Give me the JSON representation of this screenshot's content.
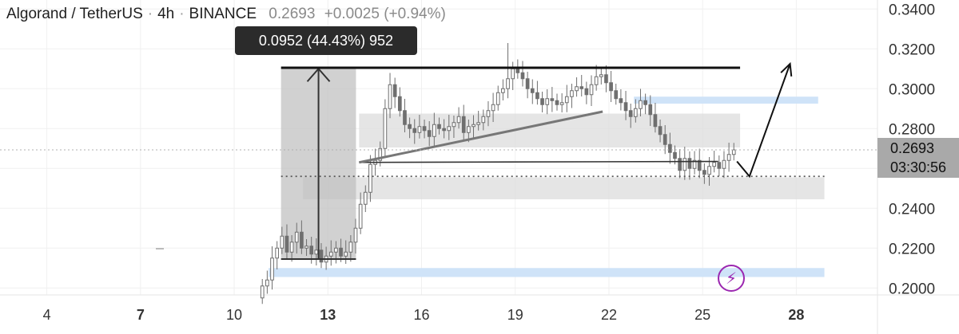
{
  "header": {
    "pair": "Algorand / TetherUS",
    "interval": "4h",
    "exchange": "BINANCE",
    "last": "0.2693",
    "change": "+0.0025 (+0.94%)"
  },
  "tooltip": {
    "text": "0.0952 (44.43%) 952"
  },
  "price_tag": {
    "price": "0.2693",
    "countdown": "03:30:56"
  },
  "icons": {
    "bolt": "lightning-bolt-icon"
  },
  "colors": {
    "zone_blue": "#cfe3f8",
    "zone_gray": "#dcdcdc",
    "measure_gray": "#bdbdbd",
    "candle": "#8f8f8f",
    "accent_purple": "#9b27b0"
  },
  "chart_data": {
    "type": "candlestick",
    "title": "Algorand / TetherUS · 4h · BINANCE",
    "y_tick_labels": [
      "0.3400",
      "0.3200",
      "0.3000",
      "0.2800",
      "0.2600",
      "0.2400",
      "0.2200",
      "0.2000"
    ],
    "y_ticks": [
      0.34,
      0.32,
      0.3,
      0.28,
      0.26,
      0.24,
      0.22,
      0.2
    ],
    "ylim": [
      0.1965,
      0.3445
    ],
    "x_tick_labels": [
      "4",
      "7",
      "10",
      "13",
      "16",
      "19",
      "22",
      "25",
      "28"
    ],
    "x_ticks": [
      4,
      7,
      10,
      13,
      16,
      19,
      22,
      25,
      28
    ],
    "bold_x_ticks": [
      "7",
      "13",
      "28"
    ],
    "xlim": [
      2.5,
      30.6
    ],
    "current_price": 0.2693,
    "close_series": [
      0.201,
      0.204,
      0.215,
      0.22,
      0.226,
      0.218,
      0.223,
      0.228,
      0.22,
      0.221,
      0.217,
      0.219,
      0.213,
      0.216,
      0.218,
      0.22,
      0.216,
      0.218,
      0.223,
      0.23,
      0.242,
      0.248,
      0.262,
      0.264,
      0.27,
      0.29,
      0.302,
      0.296,
      0.289,
      0.282,
      0.28,
      0.278,
      0.281,
      0.279,
      0.276,
      0.282,
      0.28,
      0.279,
      0.281,
      0.283,
      0.286,
      0.278,
      0.281,
      0.282,
      0.283,
      0.286,
      0.289,
      0.292,
      0.298,
      0.3,
      0.305,
      0.31,
      0.308,
      0.305,
      0.3,
      0.298,
      0.295,
      0.292,
      0.295,
      0.294,
      0.292,
      0.293,
      0.296,
      0.299,
      0.301,
      0.3,
      0.297,
      0.302,
      0.306,
      0.307,
      0.303,
      0.299,
      0.295,
      0.293,
      0.289,
      0.286,
      0.29,
      0.294,
      0.292,
      0.287,
      0.281,
      0.277,
      0.272,
      0.268,
      0.265,
      0.259,
      0.265,
      0.26,
      0.264,
      0.259,
      0.257,
      0.261,
      0.263,
      0.26,
      0.264,
      0.267,
      0.2693
    ],
    "annotations": [
      {
        "kind": "zone",
        "color": "blue",
        "x": [
          11.1,
          28.9
        ],
        "y": [
          0.2055,
          0.21
        ]
      },
      {
        "kind": "zone",
        "color": "blue",
        "x": [
          22.8,
          28.7
        ],
        "y": [
          0.2925,
          0.296
        ]
      },
      {
        "kind": "zone",
        "color": "gray",
        "x": [
          14.0,
          26.2
        ],
        "y": [
          0.2705,
          0.2875
        ]
      },
      {
        "kind": "zone",
        "color": "gray",
        "x": [
          12.2,
          28.9
        ],
        "y": [
          0.2445,
          0.2555
        ]
      },
      {
        "kind": "measure",
        "x": [
          11.5,
          13.9
        ],
        "y": [
          0.2145,
          0.31
        ],
        "label": "0.0952 (44.43%) 952"
      },
      {
        "kind": "line",
        "style": "thick-black",
        "x": [
          11.5,
          26.2
        ],
        "y": [
          0.3105,
          0.3105
        ]
      },
      {
        "kind": "line",
        "style": "thin-black",
        "x": [
          14.0,
          25.5
        ],
        "y": [
          0.263,
          0.2635
        ]
      },
      {
        "kind": "line",
        "style": "gray",
        "x": [
          14.0,
          21.8
        ],
        "y": [
          0.263,
          0.2885
        ]
      },
      {
        "kind": "line",
        "style": "dotted",
        "x": [
          11.5,
          28.9
        ],
        "y": [
          0.256,
          0.256
        ]
      },
      {
        "kind": "arrow",
        "x": [
          26.1,
          26.5,
          27.8
        ],
        "y": [
          0.2635,
          0.256,
          0.3125
        ]
      }
    ]
  }
}
